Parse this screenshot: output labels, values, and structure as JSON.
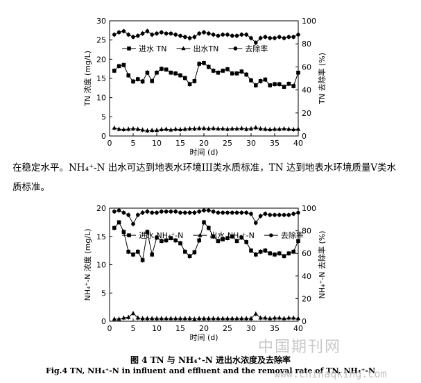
{
  "paragraph": {
    "line1": "在稳定水平。NH₄⁺-N 出水可达到地表水环境III类水质标准，TN 达到地表水环境质量V类水",
    "line2": "质标准。"
  },
  "caption": {
    "zh": "图 4 TN 与 NH₄⁺-N 进出水浓度及去除率",
    "en": "Fig.4 TN, NH₄⁺-N in influent and effluent and the removal rate of TN, NH₄⁺-N"
  },
  "watermark": {
    "cn": "中国期刊网",
    "url": "www.chinaqking.com"
  },
  "chart_data": [
    {
      "type": "line",
      "x": [
        1,
        2,
        3,
        4,
        5,
        6,
        7,
        8,
        9,
        10,
        11,
        12,
        13,
        14,
        15,
        16,
        17,
        18,
        19,
        20,
        21,
        22,
        23,
        24,
        25,
        26,
        27,
        28,
        29,
        30,
        31,
        32,
        33,
        34,
        35,
        36,
        37,
        38,
        39,
        40
      ],
      "series": [
        {
          "name": "进水 TN",
          "axis": "left",
          "marker": "square",
          "values": [
            17.0,
            18.2,
            18.5,
            15.8,
            14.2,
            14.8,
            14.2,
            16.5,
            14.3,
            16.5,
            17.5,
            17.3,
            16.5,
            16.3,
            15.8,
            15.1,
            13.5,
            14.3,
            18.8,
            19.0,
            18.0,
            17.0,
            16.5,
            17.0,
            17.4,
            16.3,
            16.3,
            16.8,
            16.0,
            14.5,
            13.2,
            14.3,
            14.7,
            13.2,
            13.5,
            13.5,
            12.8,
            13.6,
            13.0,
            16.5
          ]
        },
        {
          "name": "出水TN",
          "axis": "left",
          "marker": "triangle",
          "values": [
            2.1,
            1.8,
            1.7,
            1.8,
            1.9,
            1.8,
            1.6,
            1.4,
            1.5,
            1.5,
            1.7,
            1.8,
            1.6,
            1.8,
            1.7,
            1.8,
            1.9,
            1.9,
            2.0,
            2.0,
            1.9,
            2.0,
            1.9,
            1.9,
            1.8,
            1.9,
            1.9,
            2.0,
            1.8,
            1.9,
            2.2,
            1.9,
            1.8,
            1.7,
            1.8,
            1.8,
            1.9,
            1.8,
            1.7,
            1.8
          ]
        },
        {
          "name": "去除率",
          "axis": "right",
          "marker": "circle",
          "values": [
            88,
            90,
            91,
            88,
            86,
            87,
            89,
            91,
            88,
            89,
            90,
            89,
            89,
            88,
            87,
            86,
            85,
            86,
            89,
            90,
            89,
            88,
            87,
            88,
            88,
            87,
            87,
            88,
            88,
            85,
            81,
            85,
            86,
            85,
            85,
            86,
            85,
            86,
            86,
            88
          ]
        }
      ],
      "xlabel": "时间 (d)",
      "ylabel": "TN 浓度 (mg/L)",
      "y2label": "TN 去除率 (%)",
      "xlim": [
        0,
        40
      ],
      "ylim": [
        0,
        30
      ],
      "y2lim": [
        0,
        100
      ],
      "xticks": [
        "0",
        "5",
        "10",
        "15",
        "20",
        "25",
        "30",
        "35",
        "40"
      ],
      "yticks": [
        "0",
        "5",
        "10",
        "15",
        "20",
        "25",
        "30"
      ],
      "y2ticks": [
        "0",
        "20",
        "40",
        "60",
        "80",
        "100"
      ],
      "legend": "top"
    },
    {
      "type": "line",
      "x": [
        1,
        2,
        3,
        4,
        5,
        6,
        7,
        8,
        9,
        10,
        11,
        12,
        13,
        14,
        15,
        16,
        17,
        18,
        19,
        20,
        21,
        22,
        23,
        24,
        25,
        26,
        27,
        28,
        29,
        30,
        31,
        32,
        33,
        34,
        35,
        36,
        37,
        38,
        39,
        40
      ],
      "series": [
        {
          "name": "进水 NH₄⁺-N",
          "axis": "left",
          "marker": "square",
          "values": [
            16.5,
            17.5,
            15.8,
            12.3,
            11.8,
            12.3,
            10.8,
            15.8,
            11.8,
            14.8,
            14.2,
            14.3,
            14.7,
            14.3,
            13.8,
            12.3,
            11.5,
            12.2,
            14.3,
            17.5,
            16.5,
            15.0,
            14.2,
            14.5,
            14.7,
            15.0,
            14.2,
            14.8,
            14.0,
            12.5,
            11.8,
            12.3,
            12.5,
            12.0,
            11.8,
            12.0,
            11.5,
            12.0,
            12.3,
            14.2
          ]
        },
        {
          "name": "出水 NH₄⁺-N",
          "axis": "left",
          "marker": "triangle",
          "values": [
            0.4,
            0.4,
            0.6,
            0.7,
            1.4,
            0.6,
            0.5,
            0.5,
            0.5,
            0.5,
            0.5,
            0.5,
            0.5,
            0.5,
            0.5,
            0.5,
            0.5,
            0.4,
            0.5,
            0.5,
            0.5,
            0.5,
            0.5,
            0.5,
            0.5,
            0.5,
            0.5,
            0.5,
            0.5,
            0.5,
            1.3,
            0.6,
            0.6,
            0.5,
            0.6,
            0.6,
            0.5,
            0.6,
            0.6,
            0.5
          ]
        },
        {
          "name": "去除率",
          "axis": "right",
          "marker": "circle",
          "values": [
            97,
            98,
            96,
            94,
            86,
            94,
            96,
            97,
            96,
            96,
            97,
            97,
            97,
            97,
            96,
            96,
            96,
            96,
            97,
            98,
            98,
            97,
            96,
            96,
            96,
            96,
            96,
            96,
            96,
            95,
            87,
            93,
            95,
            94,
            94,
            94,
            94,
            94,
            95,
            96
          ]
        }
      ],
      "xlabel": "时间 (d)",
      "ylabel": "NH₄⁺-N 浓度 (mg/L)",
      "y2label": "NH₄⁺-N 去除率 (%)",
      "xlim": [
        0,
        40
      ],
      "ylim": [
        0,
        20
      ],
      "y2lim": [
        0,
        100
      ],
      "xticks": [
        "0",
        "5",
        "10",
        "15",
        "20",
        "25",
        "30",
        "35",
        "40"
      ],
      "yticks": [
        "0",
        "5",
        "10",
        "15",
        "20"
      ],
      "y2ticks": [
        "0",
        "20",
        "40",
        "60",
        "80",
        "100"
      ],
      "legend": "top"
    }
  ]
}
